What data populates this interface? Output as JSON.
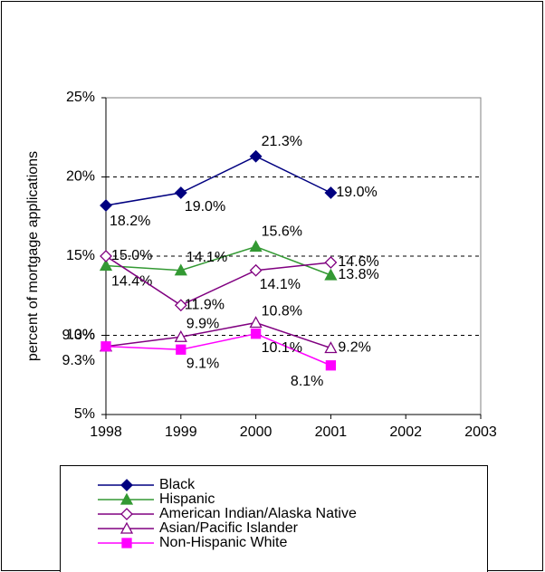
{
  "chart_data": {
    "type": "line",
    "ylabel": "percent of mortgage applications",
    "xlim": [
      1998,
      2003
    ],
    "xticks": [
      1998,
      1999,
      2000,
      2001,
      2002,
      2003
    ],
    "ylim": [
      5,
      25
    ],
    "yticks": [
      {
        "value": 5,
        "label": "5%"
      },
      {
        "value": 10,
        "label": "10%"
      },
      {
        "value": 15,
        "label": "15%"
      },
      {
        "value": 20,
        "label": "20%"
      },
      {
        "value": 25,
        "label": "25%"
      }
    ],
    "grid": true,
    "x": [
      1998,
      1999,
      2000,
      2001
    ],
    "series": [
      {
        "name": "Black",
        "color": "#000080",
        "marker": "diamond",
        "filled": true,
        "values": [
          18.2,
          19.0,
          21.3,
          19.0
        ],
        "value_labels": [
          "18.2%",
          "19.0%",
          "21.3%",
          "19.0%"
        ]
      },
      {
        "name": "Hispanic",
        "color": "#339933",
        "marker": "triangle",
        "filled": true,
        "values": [
          14.4,
          14.1,
          15.6,
          13.8
        ],
        "value_labels": [
          "14.4%",
          "14.1%",
          "15.6%",
          "13.8%"
        ]
      },
      {
        "name": "American Indian/Alaska Native",
        "color": "#800080",
        "marker": "diamond",
        "filled": false,
        "values": [
          15.0,
          11.9,
          14.1,
          14.6
        ],
        "value_labels": [
          "15.0%",
          "11.9%",
          "14.1%",
          "14.6%"
        ]
      },
      {
        "name": "Asian/Pacific Islander",
        "color": "#800080",
        "marker": "triangle",
        "filled": false,
        "values": [
          9.3,
          9.9,
          10.8,
          9.2
        ],
        "value_labels": [
          "9.3%",
          "9.9%",
          "10.8%",
          "9.2%"
        ]
      },
      {
        "name": "Non-Hispanic White",
        "color": "#ff00ff",
        "marker": "square",
        "filled": true,
        "values": [
          9.3,
          9.1,
          10.1,
          8.1
        ],
        "value_labels": [
          "9.3%",
          "9.1%",
          "10.1%",
          "8.1%"
        ]
      }
    ]
  }
}
